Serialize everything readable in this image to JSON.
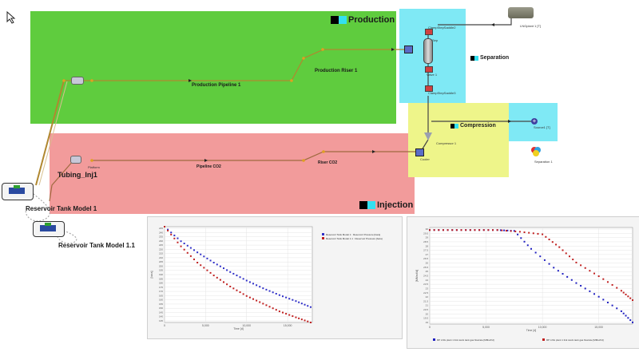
{
  "canvas": {
    "cursor_icon": "mouse-pointer-icon",
    "zones": {
      "production": {
        "label": "Production",
        "color": "#5fcc3e"
      },
      "injection": {
        "label": "Injection",
        "color": "#f29b9b"
      },
      "separation": {
        "label": "Separation",
        "color": "#7fe9f5"
      },
      "compression": {
        "label": "Compression",
        "color": "#eef58a"
      },
      "source_box": {
        "color": "#7fe9f5"
      }
    },
    "labels": {
      "production_pipeline": "Production Pipeline 1",
      "production_riser": "Production Riser 1",
      "pipeline_co2": "Pipeline CO2",
      "riser_co2": "Riser CO2",
      "tubing_inj": "Tubing_Inj1",
      "reservoir_1": "Reservoir Tank Model 1",
      "reservoir_2": "Reservoir Tank Model 1.1",
      "lng_plant": "LNGplant 1 [T]",
      "separator": "Sep",
      "source": "Source1 [T]",
      "compressor": "Compressor 1",
      "cooler": "Cooler",
      "separation_unit": "Separation 1",
      "platform": "Platform",
      "valve_top": "ClampStepSaddle2",
      "valve_mid": "Valve 1",
      "valve_low": "ClampStepSaddle3"
    }
  },
  "chart_left": {
    "chart_data": {
      "type": "scatter",
      "legend": [
        "Reservoir Tank Model 1 : Reservoir Pressure [bara]",
        "Reservoir Tank Model 1.1 : Reservoir Pressure [bara]"
      ],
      "legend_position": "top-right",
      "ylabel": "[bara]",
      "xlabel": "Time [d]",
      "xticks": [
        "0",
        "5,000",
        "10,000",
        "15,000"
      ],
      "yticks": [
        "245",
        "240",
        "235",
        "230",
        "225",
        "220",
        "215",
        "210",
        "205",
        "200",
        "195",
        "190",
        "185",
        "180",
        "175",
        "170",
        "165",
        "160",
        "155",
        "150",
        "145",
        "140",
        "135"
      ],
      "xlim": [
        0,
        18000
      ],
      "ylim": [
        133,
        245
      ],
      "series": [
        {
          "name": "Reservoir Tank Model 1 : Reservoir Pressure [bara]",
          "color": "#3030c8",
          "x": [
            0,
            2000,
            4000,
            6000,
            8000,
            10000,
            12000,
            14000,
            16000,
            17800
          ],
          "values": [
            245,
            228,
            215,
            203,
            192,
            182,
            173,
            165,
            158,
            151
          ]
        },
        {
          "name": "Reservoir Tank Model 1.1 : Reservoir Pressure [bara]",
          "color": "#c02020",
          "x": [
            0,
            2000,
            4000,
            6000,
            8000,
            10000,
            12000,
            14000,
            16000,
            17800
          ],
          "values": [
            245,
            222,
            203,
            188,
            175,
            164,
            155,
            146,
            139,
            133
          ]
        }
      ],
      "grid": true
    }
  },
  "chart_right": {
    "chart_data": {
      "type": "scatter",
      "legend": [
        "RP LNG plant 1 link stock tank gas flowrate [MMscf/d]",
        "RP LNG plant 1 link stock tank gas flowrate [MMscf/d]"
      ],
      "legend_position": "bottom",
      "ylabel": "[MMscf/d]",
      "xlabel": "Time [d]",
      "xticks": [
        "0",
        "5,000",
        "10,000",
        "15,000"
      ],
      "yticks": [
        "30",
        "29.5",
        "29",
        "28.5",
        "28",
        "27.5",
        "27",
        "26.5",
        "26",
        "25.5",
        "25",
        "24.5",
        "24",
        "23.5",
        "23",
        "22.5",
        "22",
        "21.5",
        "21",
        "20.5",
        "20",
        "19.5",
        "19"
      ],
      "xlim": [
        0,
        18000
      ],
      "ylim": [
        19,
        30.3
      ],
      "series": [
        {
          "name": "RP LNG plant 1 link stock tank gas flowrate [MMscf/d]",
          "color": "#2020c0",
          "x": [
            0,
            2000,
            4000,
            6000,
            7500,
            9000,
            11000,
            13000,
            15000,
            17000,
            18000
          ],
          "values": [
            30,
            30,
            30,
            30,
            29.9,
            27.8,
            25.6,
            23.8,
            22.2,
            20.5,
            19.2
          ]
        },
        {
          "name": "RP LNG plant 1 link stock tank gas flowrate [MMscf/d]",
          "color": "#c02020",
          "x": [
            0,
            2000,
            4000,
            6000,
            8000,
            10000,
            11500,
            13000,
            15000,
            17000,
            18000
          ],
          "values": [
            30,
            30,
            30,
            30,
            29.8,
            29.5,
            28.0,
            26.2,
            24.6,
            22.9,
            21.8
          ]
        }
      ],
      "grid": true
    }
  }
}
